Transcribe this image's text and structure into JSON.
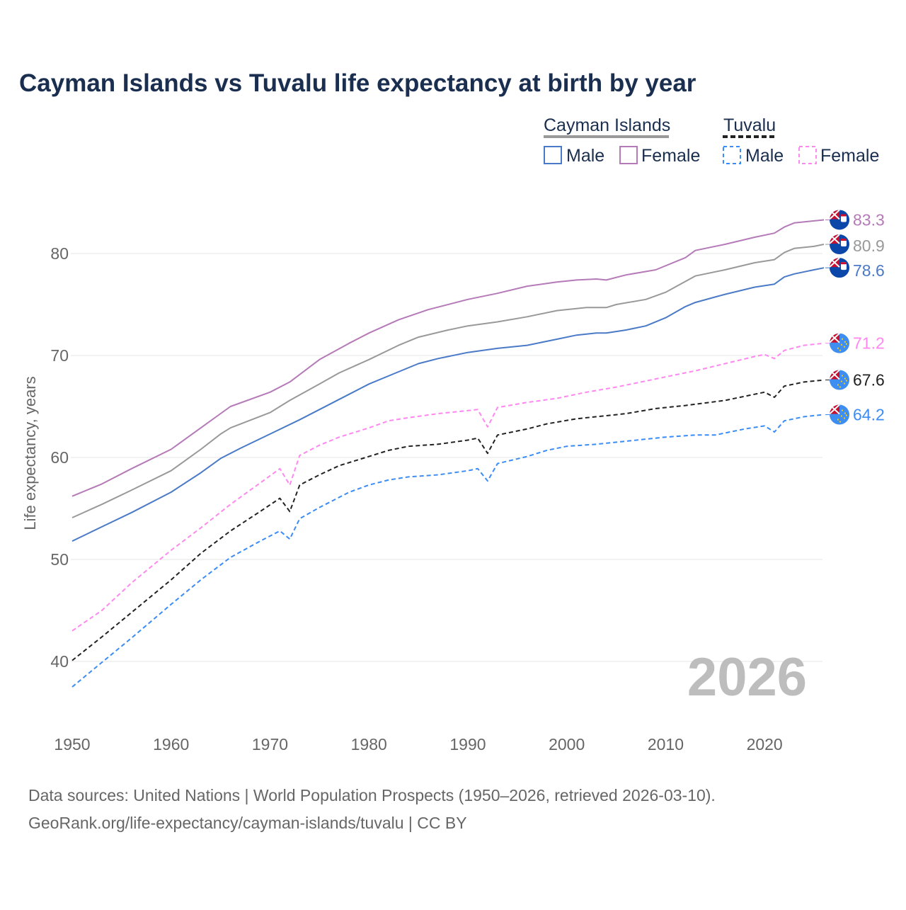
{
  "colors": {
    "title": "#1a2e4f",
    "cayman_male": "#4a7ac7",
    "cayman_female": "#b57ab8",
    "cayman_total": "#999999",
    "tuvalu_male": "#3b8cf5",
    "tuvalu_female": "#ff88f0",
    "tuvalu_total": "#222222"
  },
  "legend": {
    "groups": [
      {
        "label": "Cayman Islands",
        "male": "Male",
        "female": "Female"
      },
      {
        "label": "Tuvalu",
        "male": "Male",
        "female": "Female"
      }
    ]
  },
  "watermark_year": "2026",
  "footer": {
    "line1": "Data sources: United Nations | World Population Prospects (1950–2026, retrieved 2026-03-10).",
    "line2": "GeoRank.org/life-expectancy/cayman-islands/tuvalu | CC BY"
  },
  "chart_data": {
    "type": "line",
    "title": "Cayman Islands vs Tuvalu life expectancy at birth by year",
    "xlabel": "",
    "ylabel": "Life expectancy, years",
    "xlim": [
      1950,
      2026
    ],
    "ylim": [
      33,
      86
    ],
    "x_ticks": [
      "1950",
      "1960",
      "1970",
      "1980",
      "1990",
      "2000",
      "2010",
      "2020"
    ],
    "y_ticks": [
      "40",
      "50",
      "60",
      "70",
      "80"
    ],
    "grid": true,
    "legend_position": "top-right",
    "series": [
      {
        "name": "Cayman Islands Female",
        "key": "cayman_female",
        "dashed": false,
        "end_label": "83.3",
        "flag": "cayman",
        "points": [
          [
            1950,
            56.2
          ],
          [
            1953,
            57.4
          ],
          [
            1956,
            58.9
          ],
          [
            1960,
            60.8
          ],
          [
            1963,
            62.9
          ],
          [
            1966,
            65.0
          ],
          [
            1970,
            66.4
          ],
          [
            1972,
            67.4
          ],
          [
            1975,
            69.6
          ],
          [
            1978,
            71.2
          ],
          [
            1980,
            72.2
          ],
          [
            1983,
            73.5
          ],
          [
            1986,
            74.5
          ],
          [
            1990,
            75.5
          ],
          [
            1993,
            76.1
          ],
          [
            1996,
            76.8
          ],
          [
            1999,
            77.2
          ],
          [
            2001,
            77.4
          ],
          [
            2003,
            77.5
          ],
          [
            2004,
            77.4
          ],
          [
            2006,
            77.9
          ],
          [
            2009,
            78.4
          ],
          [
            2012,
            79.6
          ],
          [
            2013,
            80.3
          ],
          [
            2016,
            80.9
          ],
          [
            2019,
            81.6
          ],
          [
            2021,
            82.0
          ],
          [
            2022,
            82.6
          ],
          [
            2023,
            83.0
          ],
          [
            2025,
            83.2
          ],
          [
            2026,
            83.3
          ]
        ]
      },
      {
        "name": "Cayman Islands Total",
        "key": "cayman_total",
        "dashed": false,
        "end_label": "80.9",
        "flag": "cayman",
        "points": [
          [
            1950,
            54.1
          ],
          [
            1953,
            55.4
          ],
          [
            1956,
            56.8
          ],
          [
            1960,
            58.7
          ],
          [
            1963,
            60.8
          ],
          [
            1965,
            62.3
          ],
          [
            1966,
            62.9
          ],
          [
            1970,
            64.4
          ],
          [
            1972,
            65.6
          ],
          [
            1975,
            67.2
          ],
          [
            1977,
            68.3
          ],
          [
            1980,
            69.6
          ],
          [
            1983,
            71.0
          ],
          [
            1985,
            71.8
          ],
          [
            1988,
            72.5
          ],
          [
            1990,
            72.9
          ],
          [
            1993,
            73.3
          ],
          [
            1996,
            73.8
          ],
          [
            1999,
            74.4
          ],
          [
            2002,
            74.7
          ],
          [
            2004,
            74.7
          ],
          [
            2005,
            75.0
          ],
          [
            2008,
            75.5
          ],
          [
            2010,
            76.2
          ],
          [
            2013,
            77.8
          ],
          [
            2016,
            78.4
          ],
          [
            2019,
            79.1
          ],
          [
            2021,
            79.4
          ],
          [
            2022,
            80.1
          ],
          [
            2023,
            80.5
          ],
          [
            2025,
            80.7
          ],
          [
            2026,
            80.9
          ]
        ]
      },
      {
        "name": "Cayman Islands Male",
        "key": "cayman_male",
        "dashed": false,
        "end_label": "78.6",
        "flag": "cayman",
        "points": [
          [
            1950,
            51.8
          ],
          [
            1953,
            53.2
          ],
          [
            1956,
            54.6
          ],
          [
            1960,
            56.6
          ],
          [
            1963,
            58.5
          ],
          [
            1965,
            59.9
          ],
          [
            1967,
            60.9
          ],
          [
            1970,
            62.3
          ],
          [
            1973,
            63.7
          ],
          [
            1975,
            64.7
          ],
          [
            1978,
            66.2
          ],
          [
            1980,
            67.2
          ],
          [
            1983,
            68.4
          ],
          [
            1985,
            69.2
          ],
          [
            1987,
            69.7
          ],
          [
            1990,
            70.3
          ],
          [
            1993,
            70.7
          ],
          [
            1996,
            71.0
          ],
          [
            1999,
            71.6
          ],
          [
            2001,
            72.0
          ],
          [
            2003,
            72.2
          ],
          [
            2004,
            72.2
          ],
          [
            2006,
            72.5
          ],
          [
            2008,
            72.9
          ],
          [
            2010,
            73.7
          ],
          [
            2012,
            74.8
          ],
          [
            2013,
            75.2
          ],
          [
            2016,
            76.0
          ],
          [
            2019,
            76.7
          ],
          [
            2021,
            77.0
          ],
          [
            2022,
            77.7
          ],
          [
            2023,
            78.0
          ],
          [
            2025,
            78.4
          ],
          [
            2026,
            78.6
          ]
        ]
      },
      {
        "name": "Tuvalu Female",
        "key": "tuvalu_female",
        "dashed": true,
        "end_label": "71.2",
        "flag": "tuvalu",
        "points": [
          [
            1950,
            43.0
          ],
          [
            1953,
            45.0
          ],
          [
            1956,
            47.7
          ],
          [
            1960,
            50.9
          ],
          [
            1963,
            53.1
          ],
          [
            1966,
            55.4
          ],
          [
            1969,
            57.5
          ],
          [
            1971,
            58.9
          ],
          [
            1972,
            57.3
          ],
          [
            1973,
            60.2
          ],
          [
            1975,
            61.2
          ],
          [
            1977,
            62.0
          ],
          [
            1980,
            62.9
          ],
          [
            1982,
            63.6
          ],
          [
            1984,
            63.9
          ],
          [
            1987,
            64.3
          ],
          [
            1990,
            64.6
          ],
          [
            1991,
            64.7
          ],
          [
            1992,
            63.0
          ],
          [
            1993,
            64.9
          ],
          [
            1996,
            65.4
          ],
          [
            1999,
            65.8
          ],
          [
            2002,
            66.4
          ],
          [
            2005,
            66.9
          ],
          [
            2008,
            67.5
          ],
          [
            2010,
            67.9
          ],
          [
            2013,
            68.5
          ],
          [
            2016,
            69.2
          ],
          [
            2019,
            69.9
          ],
          [
            2020,
            70.1
          ],
          [
            2021,
            69.7
          ],
          [
            2022,
            70.5
          ],
          [
            2024,
            71.0
          ],
          [
            2026,
            71.2
          ]
        ]
      },
      {
        "name": "Tuvalu Total",
        "key": "tuvalu_total",
        "dashed": true,
        "end_label": "67.6",
        "flag": "tuvalu",
        "points": [
          [
            1950,
            40.1
          ],
          [
            1953,
            42.4
          ],
          [
            1956,
            44.8
          ],
          [
            1960,
            48.0
          ],
          [
            1963,
            50.6
          ],
          [
            1966,
            52.8
          ],
          [
            1969,
            54.7
          ],
          [
            1971,
            56.0
          ],
          [
            1972,
            54.7
          ],
          [
            1973,
            57.3
          ],
          [
            1975,
            58.3
          ],
          [
            1977,
            59.2
          ],
          [
            1980,
            60.1
          ],
          [
            1982,
            60.7
          ],
          [
            1984,
            61.1
          ],
          [
            1987,
            61.3
          ],
          [
            1990,
            61.7
          ],
          [
            1991,
            61.9
          ],
          [
            1992,
            60.4
          ],
          [
            1993,
            62.2
          ],
          [
            1996,
            62.8
          ],
          [
            1998,
            63.3
          ],
          [
            2001,
            63.8
          ],
          [
            2004,
            64.1
          ],
          [
            2006,
            64.3
          ],
          [
            2009,
            64.8
          ],
          [
            2012,
            65.1
          ],
          [
            2016,
            65.6
          ],
          [
            2019,
            66.2
          ],
          [
            2020,
            66.4
          ],
          [
            2021,
            65.9
          ],
          [
            2022,
            67.0
          ],
          [
            2024,
            67.4
          ],
          [
            2026,
            67.6
          ]
        ]
      },
      {
        "name": "Tuvalu Male",
        "key": "tuvalu_male",
        "dashed": true,
        "end_label": "64.2",
        "flag": "tuvalu",
        "points": [
          [
            1950,
            37.5
          ],
          [
            1953,
            39.9
          ],
          [
            1956,
            42.3
          ],
          [
            1960,
            45.6
          ],
          [
            1963,
            48.0
          ],
          [
            1966,
            50.2
          ],
          [
            1969,
            51.8
          ],
          [
            1971,
            52.8
          ],
          [
            1972,
            52.0
          ],
          [
            1973,
            54.0
          ],
          [
            1975,
            55.1
          ],
          [
            1978,
            56.6
          ],
          [
            1980,
            57.3
          ],
          [
            1982,
            57.8
          ],
          [
            1984,
            58.1
          ],
          [
            1987,
            58.3
          ],
          [
            1990,
            58.7
          ],
          [
            1991,
            58.9
          ],
          [
            1992,
            57.7
          ],
          [
            1993,
            59.4
          ],
          [
            1996,
            60.1
          ],
          [
            1998,
            60.7
          ],
          [
            2000,
            61.1
          ],
          [
            2003,
            61.3
          ],
          [
            2006,
            61.6
          ],
          [
            2008,
            61.8
          ],
          [
            2010,
            62.0
          ],
          [
            2013,
            62.2
          ],
          [
            2015,
            62.2
          ],
          [
            2018,
            62.8
          ],
          [
            2020,
            63.1
          ],
          [
            2021,
            62.5
          ],
          [
            2022,
            63.6
          ],
          [
            2024,
            64.0
          ],
          [
            2026,
            64.2
          ]
        ]
      }
    ]
  }
}
